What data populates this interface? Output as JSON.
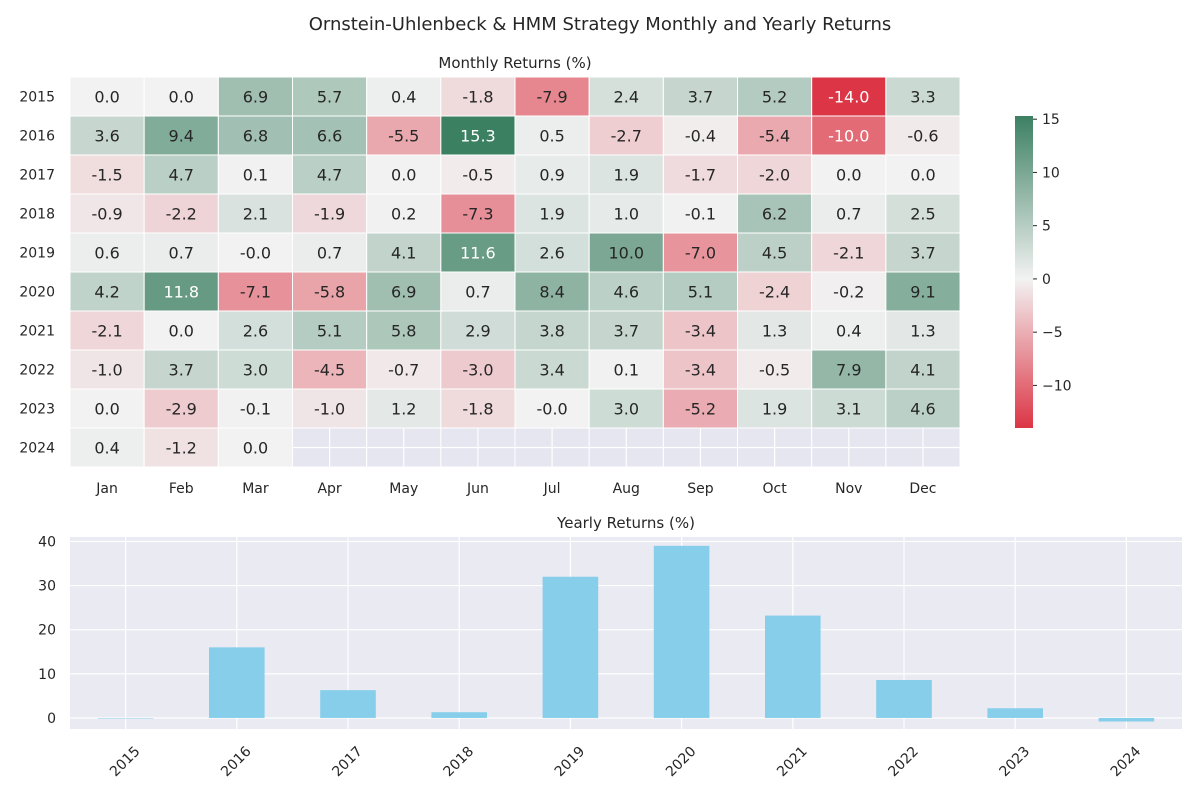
{
  "title": "Ornstein-Uhlenbeck & HMM Strategy Monthly and Yearly Returns",
  "chart_data": [
    {
      "type": "heatmap",
      "title": "Monthly Returns (%)",
      "rows": [
        "2015",
        "2016",
        "2017",
        "2018",
        "2019",
        "2020",
        "2021",
        "2022",
        "2023",
        "2024"
      ],
      "columns": [
        "Jan",
        "Feb",
        "Mar",
        "Apr",
        "May",
        "Jun",
        "Jul",
        "Aug",
        "Sep",
        "Oct",
        "Nov",
        "Dec"
      ],
      "values": [
        [
          "0.0",
          "0.0",
          "6.9",
          "5.7",
          "0.4",
          "-1.8",
          "-7.9",
          "2.4",
          "3.7",
          "5.2",
          "-14.0",
          "3.3"
        ],
        [
          "3.6",
          "9.4",
          "6.8",
          "6.6",
          "-5.5",
          "15.3",
          "0.5",
          "-2.7",
          "-0.4",
          "-5.4",
          "-10.0",
          "-0.6"
        ],
        [
          "-1.5",
          "4.7",
          "0.1",
          "4.7",
          "0.0",
          "-0.5",
          "0.9",
          "1.9",
          "-1.7",
          "-2.0",
          "0.0",
          "0.0"
        ],
        [
          "-0.9",
          "-2.2",
          "2.1",
          "-1.9",
          "0.2",
          "-7.3",
          "1.9",
          "1.0",
          "-0.1",
          "6.2",
          "0.7",
          "2.5"
        ],
        [
          "0.6",
          "0.7",
          "-0.0",
          "0.7",
          "4.1",
          "11.6",
          "2.6",
          "10.0",
          "-7.0",
          "4.5",
          "-2.1",
          "3.7"
        ],
        [
          "4.2",
          "11.8",
          "-7.1",
          "-5.8",
          "6.9",
          "0.7",
          "8.4",
          "4.6",
          "5.1",
          "-2.4",
          "-0.2",
          "9.1"
        ],
        [
          "-2.1",
          "0.0",
          "2.6",
          "5.1",
          "5.8",
          "2.9",
          "3.8",
          "3.7",
          "-3.4",
          "1.3",
          "0.4",
          "1.3"
        ],
        [
          "-1.0",
          "3.7",
          "3.0",
          "-4.5",
          "-0.7",
          "-3.0",
          "3.4",
          "0.1",
          "-3.4",
          "-0.5",
          "7.9",
          "4.1"
        ],
        [
          "0.0",
          "-2.9",
          "-0.1",
          "-1.0",
          "1.2",
          "-1.8",
          "-0.0",
          "3.0",
          "-5.2",
          "1.9",
          "3.1",
          "4.6"
        ],
        [
          "0.4",
          "-1.2",
          "0.0",
          null,
          null,
          null,
          null,
          null,
          null,
          null,
          null,
          null
        ]
      ],
      "colorbar": {
        "min": -14.0,
        "max": 15.3,
        "ticks": [
          15,
          10,
          5,
          0,
          -5,
          -10
        ],
        "tick_labels": [
          "15",
          "10",
          "5",
          "0",
          "−5",
          "−10"
        ]
      },
      "colors": {
        "negative": "#dc3545",
        "neutral": "#f2f2f2",
        "positive": "#3c8062",
        "missing": "#e5e6f0"
      }
    },
    {
      "type": "bar",
      "title": "Yearly Returns (%)",
      "categories": [
        "2015",
        "2016",
        "2017",
        "2018",
        "2019",
        "2020",
        "2021",
        "2022",
        "2023",
        "2024"
      ],
      "values": [
        0.0,
        16.0,
        6.3,
        1.3,
        32.0,
        39.0,
        23.2,
        8.6,
        2.2,
        -0.8
      ],
      "ylim": [
        -2.5,
        41
      ],
      "yticks": [
        0,
        10,
        20,
        30,
        40
      ],
      "grid": true,
      "colors": {
        "bar": "#87ceeb",
        "background": "#eaeaf2",
        "grid": "#ffffff"
      }
    }
  ]
}
